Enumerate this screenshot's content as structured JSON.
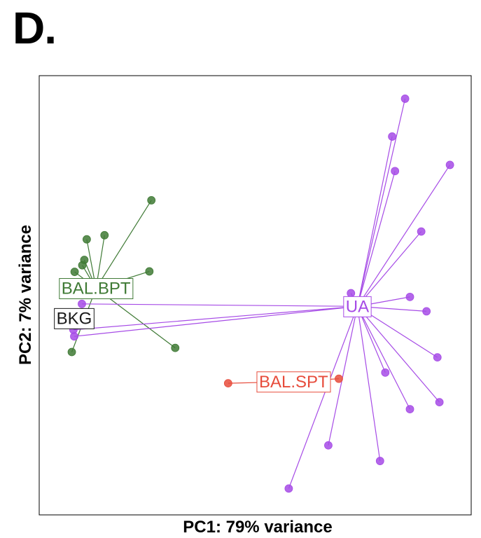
{
  "panel_label": "D.",
  "chart_data": {
    "type": "scatter",
    "subtype": "pca-spider",
    "title": "",
    "xlabel": "PC1: 79% variance",
    "ylabel": "PC2: 7% variance",
    "xlim": [
      0,
      100
    ],
    "ylim": [
      0,
      100
    ],
    "grid": false,
    "ticks": false,
    "series": [
      {
        "name": "BKG",
        "color": "#1a1a1a",
        "centroid": {
          "x": 5.2,
          "y": 44.4
        },
        "points": [
          {
            "x": 4.8,
            "y": 43.8
          },
          {
            "x": 5.3,
            "y": 43.2
          },
          {
            "x": 5.7,
            "y": 44.2
          },
          {
            "x": 4.9,
            "y": 45.0
          },
          {
            "x": 5.5,
            "y": 42.6
          }
        ]
      },
      {
        "name": "BAL.BPT",
        "color": "#3f7a35",
        "centroid": {
          "x": 10.6,
          "y": 51.7
        },
        "points": [
          {
            "x": 24.3,
            "y": 73.1
          },
          {
            "x": 12.7,
            "y": 64.6
          },
          {
            "x": 8.3,
            "y": 63.6
          },
          {
            "x": 7.7,
            "y": 58.6
          },
          {
            "x": 7.2,
            "y": 57.3
          },
          {
            "x": 5.3,
            "y": 55.7
          },
          {
            "x": 5.6,
            "y": 52.5
          },
          {
            "x": 6.4,
            "y": 52.7
          },
          {
            "x": 23.8,
            "y": 55.8
          },
          {
            "x": 30.2,
            "y": 37.2
          },
          {
            "x": 4.6,
            "y": 36.2
          }
        ]
      },
      {
        "name": "UA",
        "color": "#a64be6",
        "centroid": {
          "x": 75.3,
          "y": 47.3
        },
        "points": [
          {
            "x": 87.1,
            "y": 97.8
          },
          {
            "x": 83.9,
            "y": 88.6
          },
          {
            "x": 84.6,
            "y": 80.2
          },
          {
            "x": 98.2,
            "y": 81.7
          },
          {
            "x": 91.1,
            "y": 65.5
          },
          {
            "x": 73.7,
            "y": 50.5
          },
          {
            "x": 88.3,
            "y": 49.6
          },
          {
            "x": 92.4,
            "y": 46.1
          },
          {
            "x": 74.3,
            "y": 46.6
          },
          {
            "x": 95.1,
            "y": 34.9
          },
          {
            "x": 82.2,
            "y": 31.2
          },
          {
            "x": 95.6,
            "y": 24.0
          },
          {
            "x": 88.3,
            "y": 22.3
          },
          {
            "x": 68.1,
            "y": 13.5
          },
          {
            "x": 80.9,
            "y": 9.7
          },
          {
            "x": 58.3,
            "y": 3.0
          },
          {
            "x": 7.1,
            "y": 47.9
          },
          {
            "x": 5.2,
            "y": 40.0
          },
          {
            "x": 5.0,
            "y": 41.6
          }
        ]
      },
      {
        "name": "BAL.SPT",
        "color": "#e74c3c",
        "centroid": {
          "x": 59.5,
          "y": 29.0
        },
        "points": [
          {
            "x": 43.3,
            "y": 28.6
          },
          {
            "x": 70.7,
            "y": 29.7
          }
        ]
      }
    ]
  }
}
